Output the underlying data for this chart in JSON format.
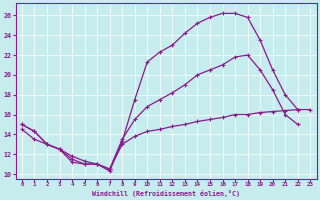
{
  "title": "",
  "xlabel": "Windchill (Refroidissement éolien,°C)",
  "ylabel": "",
  "background_color": "#c6ecee",
  "line_color": "#8b1a8b",
  "xlim": [
    -0.5,
    23.5
  ],
  "ylim": [
    9.5,
    27.2
  ],
  "xticks": [
    0,
    1,
    2,
    3,
    4,
    5,
    6,
    7,
    8,
    9,
    10,
    11,
    12,
    13,
    14,
    15,
    16,
    17,
    18,
    19,
    20,
    21,
    22,
    23
  ],
  "yticks": [
    10,
    12,
    14,
    16,
    18,
    20,
    22,
    24,
    26
  ],
  "line1_x": [
    0,
    1,
    2,
    3,
    4,
    5,
    6,
    7,
    8,
    9,
    10,
    11,
    12,
    13,
    14,
    15,
    16,
    17,
    18,
    19,
    20,
    21,
    22
  ],
  "line1_y": [
    15.0,
    14.3,
    13.0,
    12.5,
    11.2,
    11.0,
    11.0,
    10.3,
    13.3,
    17.5,
    21.3,
    22.3,
    23.0,
    24.2,
    25.2,
    25.8,
    26.2,
    26.2,
    25.8,
    23.5,
    20.5,
    18.0,
    16.5
  ],
  "line2_x": [
    0,
    1,
    2,
    3,
    4,
    5,
    6,
    7,
    8,
    9,
    10,
    11,
    12,
    13,
    14,
    15,
    16,
    17,
    18,
    19,
    20,
    21,
    22
  ],
  "line2_y": [
    15.0,
    14.3,
    13.0,
    12.5,
    11.5,
    11.0,
    11.0,
    10.5,
    13.5,
    15.5,
    16.8,
    17.5,
    18.2,
    19.0,
    20.0,
    20.5,
    21.0,
    21.8,
    22.0,
    20.5,
    18.5,
    16.0,
    15.0
  ],
  "line3_x": [
    0,
    1,
    2,
    3,
    4,
    5,
    6,
    7,
    8,
    9,
    10,
    11,
    12,
    13,
    14,
    15,
    16,
    17,
    18,
    19,
    20,
    21,
    22,
    23
  ],
  "line3_y": [
    14.5,
    13.5,
    13.0,
    12.5,
    11.8,
    11.3,
    11.0,
    10.5,
    13.0,
    13.8,
    14.3,
    14.5,
    14.8,
    15.0,
    15.3,
    15.5,
    15.7,
    16.0,
    16.0,
    16.2,
    16.3,
    16.4,
    16.5,
    16.5
  ]
}
